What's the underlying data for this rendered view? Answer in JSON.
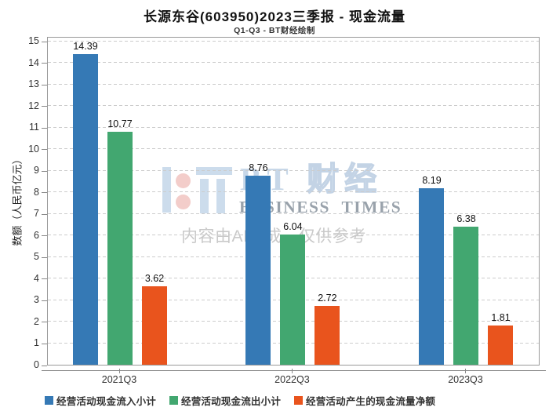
{
  "header": {
    "title": "长源东谷(603950)2023三季报 - 现金流量",
    "subtitle": "Q1-Q3 - BT财经绘制"
  },
  "watermark": {
    "brand_latin": "BT",
    "brand_cjk": "财经",
    "brand_en": "BUSINESS TIMES",
    "disclaimer": "内容由AI生成，仅供参考"
  },
  "chart_data": {
    "type": "bar",
    "title": "长源东谷(603950)2023三季报 - 现金流量",
    "subtitle": "Q1-Q3 - BT财经绘制",
    "categories": [
      "2021Q3",
      "2022Q3",
      "2023Q3"
    ],
    "series": [
      {
        "name": "经营活动现金流入小计",
        "color": "#3579b5",
        "values": [
          14.39,
          8.76,
          8.19
        ]
      },
      {
        "name": "经营活动现金流出小计",
        "color": "#42a770",
        "values": [
          10.77,
          6.04,
          6.38
        ]
      },
      {
        "name": "经营活动产生的现金流量净额",
        "color": "#e9541d",
        "values": [
          3.62,
          2.72,
          1.81
        ]
      }
    ],
    "xlabel": "",
    "ylabel": "数额（人民币亿元）",
    "ylim": [
      0,
      15
    ],
    "ytick_step": 1,
    "grid": "horizontal-dashed",
    "legend_position": "bottom"
  }
}
